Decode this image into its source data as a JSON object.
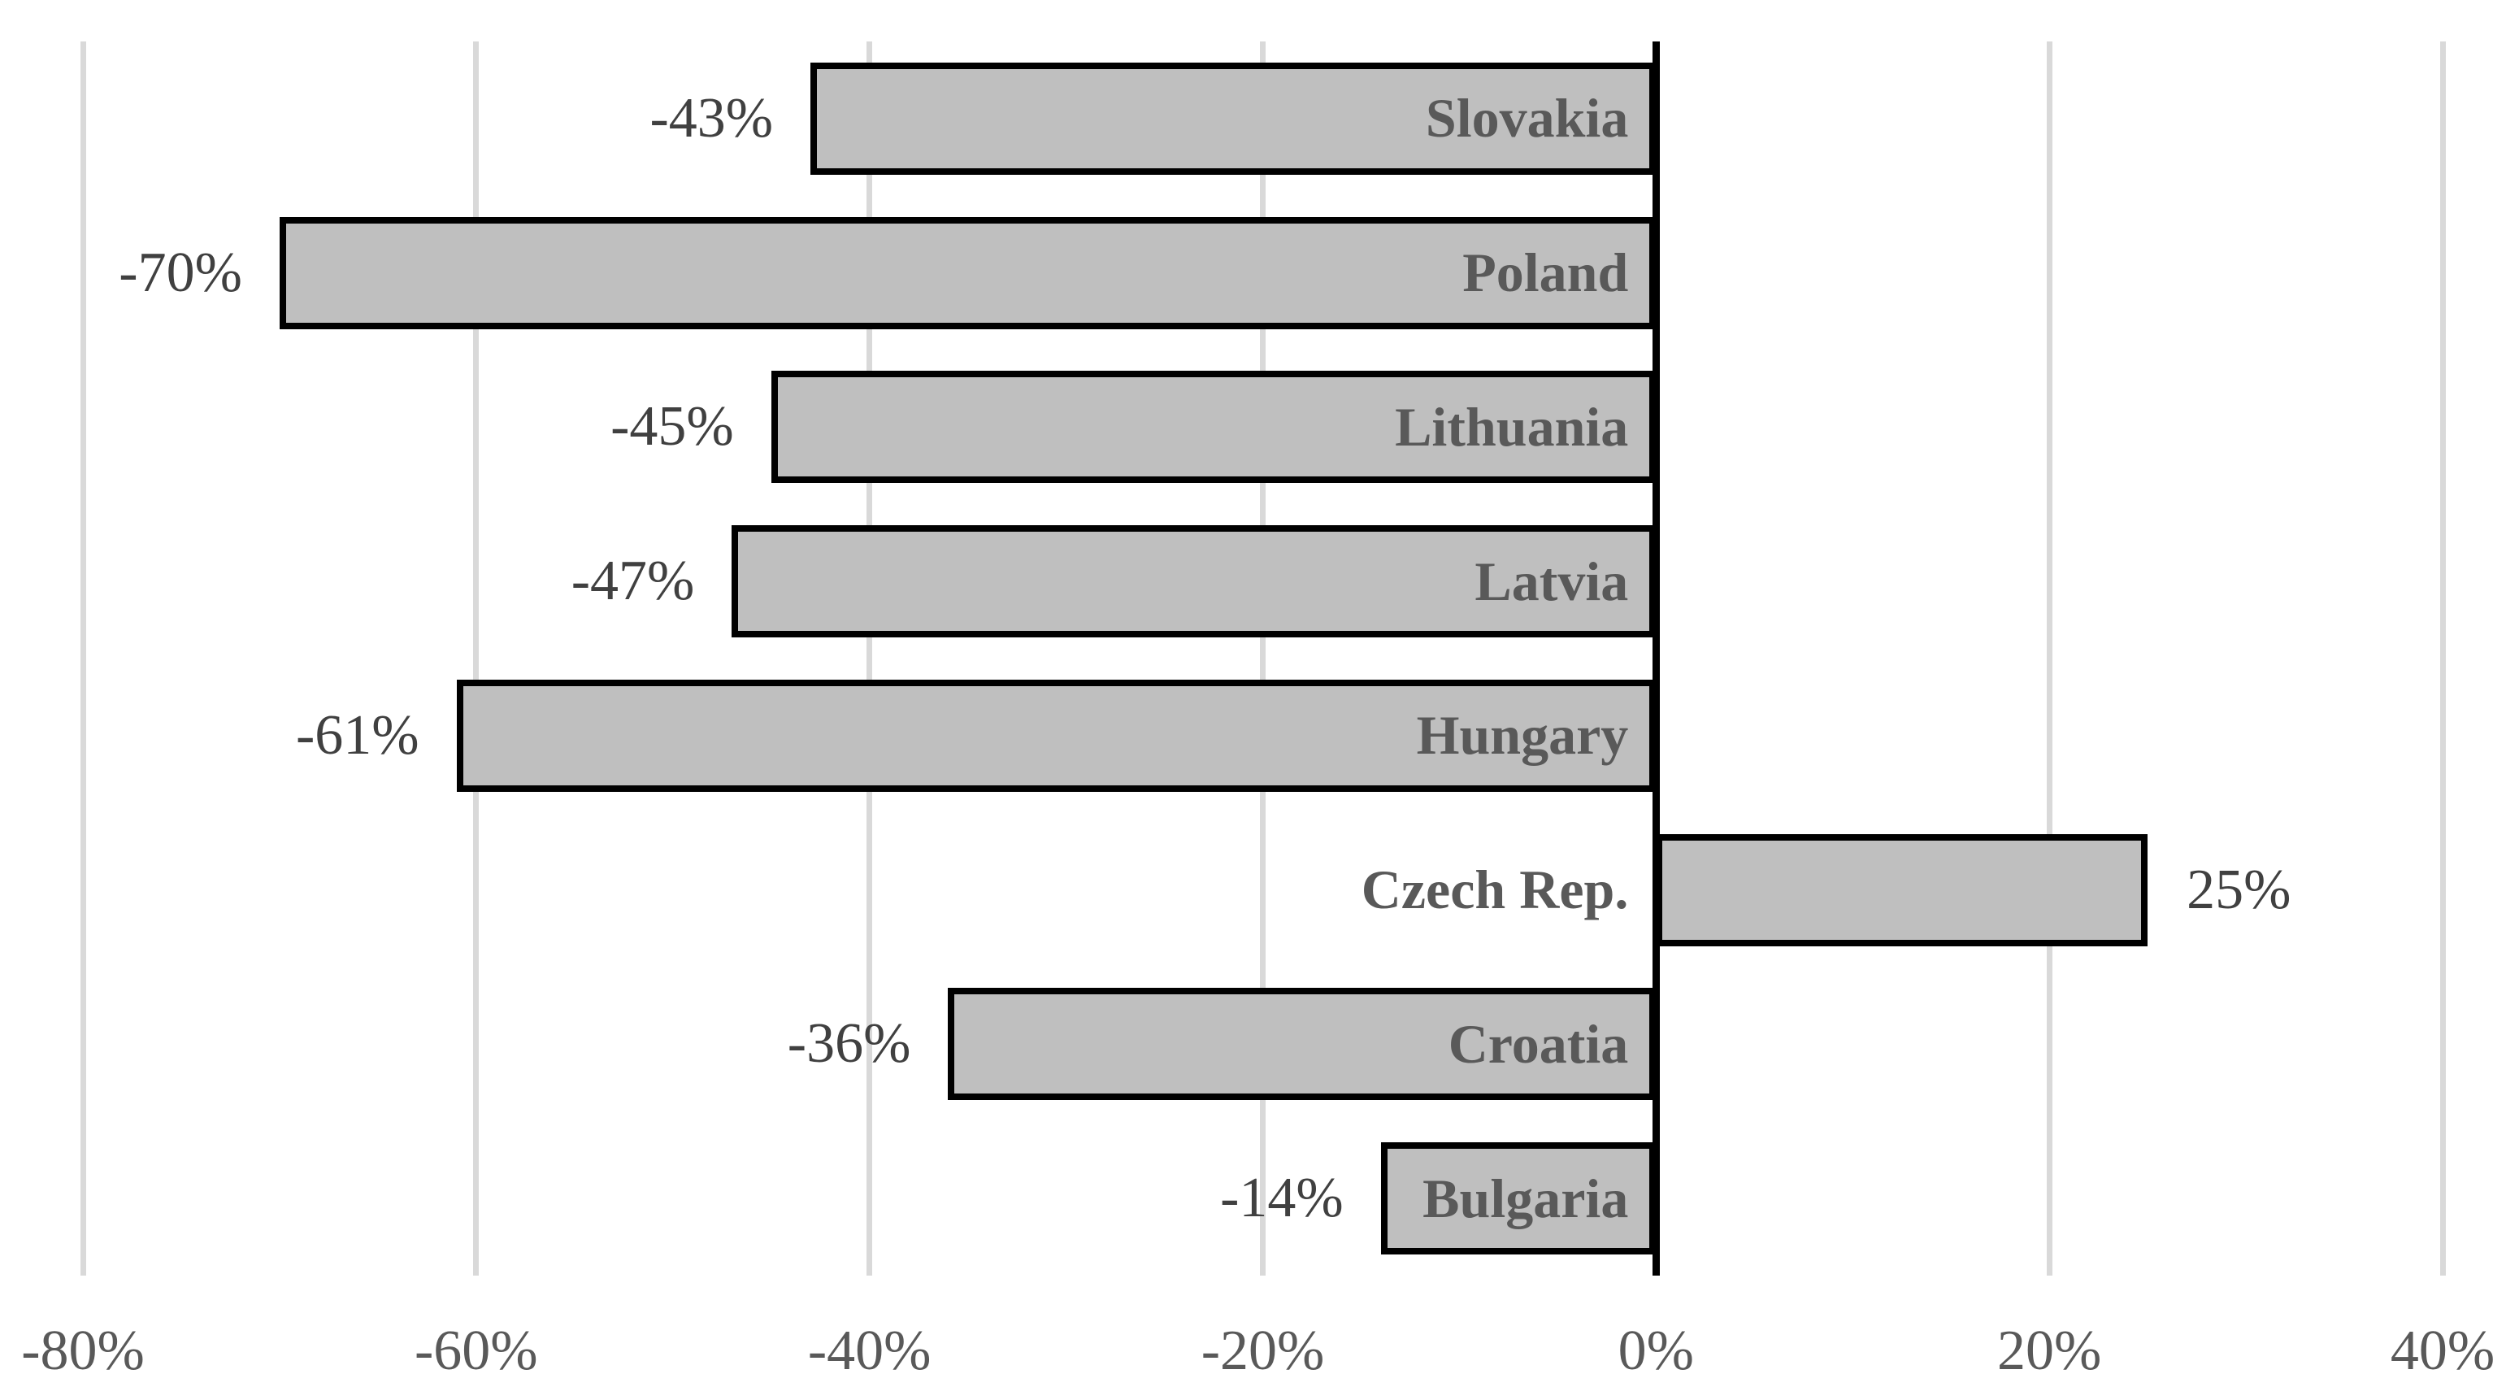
{
  "chart_data": {
    "type": "bar",
    "orientation": "horizontal",
    "title": "",
    "xlabel": "",
    "ylabel": "",
    "categories": [
      "Slovakia",
      "Poland",
      "Lithuania",
      "Latvia",
      "Hungary",
      "Czech Rep.",
      "Croatia",
      "Bulgaria"
    ],
    "values": [
      -43,
      -70,
      -45,
      -47,
      -61,
      25,
      -36,
      -14
    ],
    "value_labels": [
      "-43%",
      "-70%",
      "-45%",
      "-47%",
      "-61%",
      "25%",
      "-36%",
      "-14%"
    ],
    "xlim": [
      -80,
      40
    ],
    "x_ticks": [
      -80,
      -60,
      -40,
      -20,
      0,
      20,
      40
    ],
    "x_tick_labels": [
      "-80%",
      "-60%",
      "-40%",
      "-20%",
      "0%",
      "20%",
      "40%"
    ],
    "grid": true,
    "legend": false,
    "colors": {
      "background": "#ffffff",
      "bar_fill": "#bfbfbf",
      "bar_border": "#000000",
      "gridline": "#d9d9d9",
      "axis_line": "#000000",
      "category_text": "#595959",
      "value_text": "#404040",
      "tick_text": "#595959"
    }
  }
}
